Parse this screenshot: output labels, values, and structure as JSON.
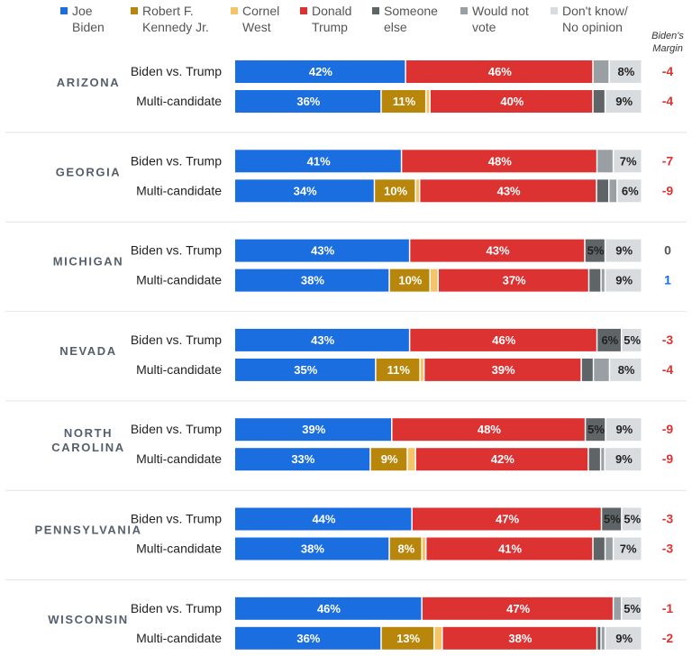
{
  "colors": {
    "Joe Biden": "#1a6ee0",
    "Robert F. Kennedy Jr.": "#b8860b",
    "Cornel West": "#f3c46a",
    "Donald Trump": "#dc3232",
    "Someone else": "#5f6467",
    "Would not vote": "#9a9fa3",
    "Don't know/ No opinion": "#d9dcdf",
    "negative_margin": "#dc3232",
    "positive_margin": "#1a6ee0",
    "zero_margin": "#555555"
  },
  "chart_data": {
    "type": "bar",
    "orientation": "horizontal",
    "stacked": true,
    "legend": {
      "placement": "top",
      "entries": [
        {
          "key": "Joe Biden",
          "lines": [
            "Joe",
            "Biden"
          ]
        },
        {
          "key": "Robert F. Kennedy Jr.",
          "lines": [
            "Robert F.",
            "Kennedy Jr."
          ]
        },
        {
          "key": "Cornel West",
          "lines": [
            "Cornel",
            "West"
          ]
        },
        {
          "key": "Donald Trump",
          "lines": [
            "Donald",
            "Trump"
          ]
        },
        {
          "key": "Someone else",
          "lines": [
            "Someone",
            "else"
          ]
        },
        {
          "key": "Would not vote",
          "lines": [
            "Would not",
            "vote"
          ]
        },
        {
          "key": "Don't know/ No opinion",
          "lines": [
            "Don't know/",
            "No opinion"
          ]
        }
      ]
    },
    "margin_header": [
      "Biden's",
      "Margin"
    ],
    "series_order": [
      "Joe Biden",
      "Robert F. Kennedy Jr.",
      "Cornel West",
      "Donald Trump",
      "Someone else",
      "Would not vote",
      "Don't know/ No opinion"
    ],
    "states": [
      {
        "name": "ARIZONA",
        "rows": [
          {
            "label": "Biden vs. Trump",
            "values": [
              42,
              0,
              0,
              46,
              0,
              4,
              8
            ],
            "labels": [
              "42%",
              "",
              "",
              "46%",
              "",
              "",
              "8%"
            ],
            "margin": "-4"
          },
          {
            "label": "Multi-candidate",
            "values": [
              36,
              11,
              1,
              40,
              3,
              0,
              9
            ],
            "labels": [
              "36%",
              "11%",
              "",
              "40%",
              "",
              "",
              "9%"
            ],
            "margin": "-4"
          }
        ]
      },
      {
        "name": "GEORGIA",
        "rows": [
          {
            "label": "Biden vs. Trump",
            "values": [
              41,
              0,
              0,
              48,
              0,
              4,
              7
            ],
            "labels": [
              "41%",
              "",
              "",
              "48%",
              "",
              "",
              "7%"
            ],
            "margin": "-7"
          },
          {
            "label": "Multi-candidate",
            "values": [
              34,
              10,
              1,
              43,
              3,
              2,
              6
            ],
            "labels": [
              "34%",
              "10%",
              "",
              "43%",
              "",
              "",
              "6%"
            ],
            "margin": "-9"
          }
        ]
      },
      {
        "name": "MICHIGAN",
        "rows": [
          {
            "label": "Biden vs. Trump",
            "values": [
              43,
              0,
              0,
              43,
              5,
              0,
              9
            ],
            "labels": [
              "43%",
              "",
              "",
              "43%",
              "5%",
              "",
              "9%"
            ],
            "margin": "0"
          },
          {
            "label": "Multi-candidate",
            "values": [
              38,
              10,
              2,
              37,
              3,
              1,
              9
            ],
            "labels": [
              "38%",
              "10%",
              "",
              "37%",
              "",
              "",
              "9%"
            ],
            "margin": "1"
          }
        ]
      },
      {
        "name": "NEVADA",
        "rows": [
          {
            "label": "Biden vs. Trump",
            "values": [
              43,
              0,
              0,
              46,
              6,
              0,
              5
            ],
            "labels": [
              "43%",
              "",
              "",
              "46%",
              "6%",
              "",
              "5%"
            ],
            "margin": "-3"
          },
          {
            "label": "Multi-candidate",
            "values": [
              35,
              11,
              1,
              39,
              3,
              4,
              8
            ],
            "labels": [
              "35%",
              "11%",
              "",
              "39%",
              "",
              "",
              "8%"
            ],
            "margin": "-4"
          }
        ]
      },
      {
        "name": "NORTH\nCAROLINA",
        "rows": [
          {
            "label": "Biden vs. Trump",
            "values": [
              39,
              0,
              0,
              48,
              5,
              0,
              9
            ],
            "labels": [
              "39%",
              "",
              "",
              "48%",
              "5%",
              "",
              "9%"
            ],
            "margin": "-9"
          },
          {
            "label": "Multi-candidate",
            "values": [
              33,
              9,
              2,
              42,
              3,
              1,
              9
            ],
            "labels": [
              "33%",
              "9%",
              "",
              "42%",
              "",
              "",
              "9%"
            ],
            "margin": "-9"
          }
        ]
      },
      {
        "name": "PENNSYLVANIA",
        "rows": [
          {
            "label": "Biden vs. Trump",
            "values": [
              44,
              0,
              0,
              47,
              5,
              0,
              5
            ],
            "labels": [
              "44%",
              "",
              "",
              "47%",
              "5%",
              "",
              "5%"
            ],
            "margin": "-3"
          },
          {
            "label": "Multi-candidate",
            "values": [
              38,
              8,
              1,
              41,
              3,
              2,
              7
            ],
            "labels": [
              "38%",
              "8%",
              "",
              "41%",
              "",
              "",
              "7%"
            ],
            "margin": "-3"
          }
        ]
      },
      {
        "name": "WISCONSIN",
        "rows": [
          {
            "label": "Biden vs. Trump",
            "values": [
              46,
              0,
              0,
              47,
              0,
              2,
              5
            ],
            "labels": [
              "46%",
              "",
              "",
              "47%",
              "",
              "",
              "5%"
            ],
            "margin": "-1"
          },
          {
            "label": "Multi-candidate",
            "values": [
              36,
              13,
              2,
              38,
              1,
              1,
              9
            ],
            "labels": [
              "36%",
              "13%",
              "",
              "38%",
              "",
              "",
              "9%"
            ],
            "margin": "-2"
          }
        ]
      }
    ]
  }
}
